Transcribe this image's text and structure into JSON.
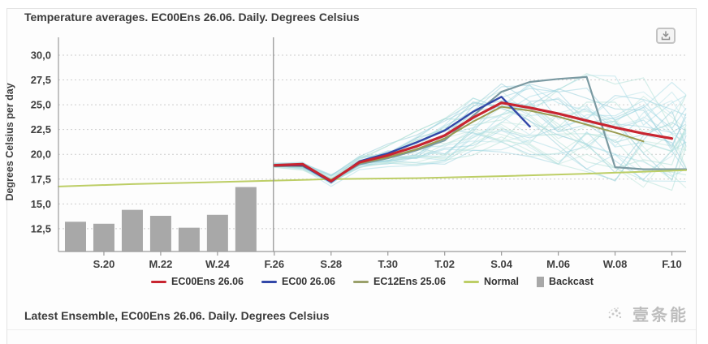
{
  "header": {
    "title": "Temperature averages. EC00Ens 26.06. Daily. Degrees Celsius"
  },
  "footer": {
    "next_section_title": "Latest Ensemble, EC00Ens 26.06. Daily. Degrees Celsius"
  },
  "watermark": {
    "text": "壹条能"
  },
  "chart_data": {
    "type": "line",
    "title": "Temperature averages. EC00Ens 26.06. Daily. Degrees Celsius",
    "xlabel": "",
    "ylabel": "Degrees Celsius per day",
    "ylim": [
      10.2,
      31.8
    ],
    "xlim_days": [
      -0.6,
      21.5
    ],
    "grid": true,
    "legend_position": "bottom",
    "decimal_separator": ",",
    "y_ticks": [
      {
        "value": 30.0,
        "label": "30,0"
      },
      {
        "value": 27.5,
        "label": "27,5"
      },
      {
        "value": 25.0,
        "label": "25,0"
      },
      {
        "value": 22.5,
        "label": "22,5"
      },
      {
        "value": 20.0,
        "label": "20,0"
      },
      {
        "value": 17.5,
        "label": "17,5"
      },
      {
        "value": 15.0,
        "label": "15,0"
      },
      {
        "value": 12.5,
        "label": "12,5"
      }
    ],
    "x_ticks": [
      {
        "day": 1,
        "label": "S.20"
      },
      {
        "day": 3,
        "label": "M.22"
      },
      {
        "day": 5,
        "label": "W.24"
      },
      {
        "day": 7,
        "label": "F.26"
      },
      {
        "day": 9,
        "label": "S.28"
      },
      {
        "day": 11,
        "label": "T.30"
      },
      {
        "day": 13,
        "label": "T.02"
      },
      {
        "day": 15,
        "label": "S.04"
      },
      {
        "day": 17,
        "label": "M.06"
      },
      {
        "day": 19,
        "label": "W.08"
      },
      {
        "day": 21,
        "label": "F.10"
      }
    ],
    "now_line_day": 6.97,
    "backcast": {
      "name": "Backcast",
      "color": "#a8a8a8",
      "days": [
        0,
        1,
        2,
        3,
        4,
        5,
        6
      ],
      "values": [
        13.2,
        13.0,
        14.4,
        13.8,
        12.6,
        13.9,
        16.7
      ]
    },
    "series": [
      {
        "name": "EC00Ens 26.06",
        "color": "#c82530",
        "width": 3.2,
        "in_legend": true,
        "points": [
          [
            7,
            18.9
          ],
          [
            8,
            19.0
          ],
          [
            9,
            17.3
          ],
          [
            10,
            19.2
          ],
          [
            11,
            19.9
          ],
          [
            12,
            20.8
          ],
          [
            13,
            21.9
          ],
          [
            14,
            23.7
          ],
          [
            15,
            25.2
          ],
          [
            16,
            24.7
          ],
          [
            17,
            24.1
          ],
          [
            18,
            23.4
          ],
          [
            19,
            22.7
          ],
          [
            20,
            22.1
          ],
          [
            21,
            21.6
          ]
        ]
      },
      {
        "name": "EC00 26.06",
        "color": "#3348a8",
        "width": 2.4,
        "in_legend": true,
        "points": [
          [
            7,
            18.85
          ],
          [
            8,
            18.9
          ],
          [
            9,
            17.2
          ],
          [
            10,
            19.3
          ],
          [
            11,
            20.1
          ],
          [
            12,
            21.2
          ],
          [
            13,
            22.4
          ],
          [
            14,
            24.3
          ],
          [
            15,
            25.8
          ],
          [
            16,
            22.8
          ]
        ]
      },
      {
        "name": "EC12Ens 25.06",
        "color": "#9a9c52",
        "width": 2,
        "in_legend": true,
        "points": [
          [
            7,
            18.8
          ],
          [
            8,
            18.85
          ],
          [
            9,
            17.4
          ],
          [
            10,
            19.1
          ],
          [
            11,
            19.7
          ],
          [
            12,
            20.5
          ],
          [
            13,
            21.6
          ],
          [
            14,
            23.3
          ],
          [
            15,
            24.8
          ],
          [
            16,
            24.4
          ],
          [
            17,
            23.8
          ],
          [
            18,
            23.0
          ],
          [
            19,
            22.2
          ],
          [
            20,
            21.3
          ]
        ]
      },
      {
        "name": "Normal",
        "color": "#bdce66",
        "width": 2,
        "in_legend": true,
        "points": [
          [
            -0.6,
            16.75
          ],
          [
            2,
            17.0
          ],
          [
            5,
            17.2
          ],
          [
            7,
            17.35
          ],
          [
            9,
            17.5
          ],
          [
            12,
            17.6
          ],
          [
            15,
            17.8
          ],
          [
            18,
            18.05
          ],
          [
            21.5,
            18.4
          ]
        ]
      },
      {
        "name": "Ensemble member highlighted",
        "color": "#7b9aa2",
        "width": 2.2,
        "in_legend": false,
        "points": [
          [
            7,
            18.9
          ],
          [
            8,
            18.8
          ],
          [
            9,
            17.4
          ],
          [
            10,
            19.0
          ],
          [
            11,
            19.6
          ],
          [
            12,
            20.4
          ],
          [
            13,
            21.4
          ],
          [
            14,
            23.9
          ],
          [
            15,
            26.3
          ],
          [
            16,
            27.3
          ],
          [
            17,
            27.6
          ],
          [
            18,
            27.8
          ],
          [
            19,
            18.7
          ],
          [
            20,
            18.5
          ],
          [
            21,
            18.5
          ],
          [
            21.5,
            18.5
          ]
        ]
      }
    ],
    "ensemble": {
      "description": "EC ensemble member spaghetti (approximate band)",
      "count": 34,
      "seed": 13,
      "opacity": 0.5,
      "stroke_width": 1.2,
      "colors": [
        "#a6dbe6",
        "#aee0d6",
        "#97d2e0",
        "#bde6dc",
        "#8fccd8",
        "#b9e4ea"
      ],
      "days": [
        7,
        8,
        9,
        10,
        11,
        12,
        13,
        14,
        15,
        16,
        17,
        18,
        19,
        20,
        21,
        21.5
      ],
      "center": [
        18.9,
        18.8,
        17.4,
        19.2,
        19.9,
        20.6,
        21.3,
        22.8,
        23.8,
        23.8,
        23.5,
        23.2,
        22.6,
        22.2,
        22.0,
        21.9
      ],
      "half": [
        0.25,
        0.35,
        0.55,
        0.65,
        1.0,
        1.5,
        2.0,
        2.5,
        3.1,
        3.5,
        3.9,
        4.3,
        4.6,
        4.8,
        4.9,
        4.9
      ]
    },
    "legend": [
      {
        "label": "EC00Ens 26.06",
        "marker": "line",
        "color": "#c82530"
      },
      {
        "label": "EC00 26.06",
        "marker": "line",
        "color": "#3348a8"
      },
      {
        "label": "EC12Ens 25.06",
        "marker": "line",
        "color": "#9aa06a"
      },
      {
        "label": "Normal",
        "marker": "line",
        "color": "#bdce66"
      },
      {
        "label": "Backcast",
        "marker": "bar",
        "color": "#a8a8a8"
      }
    ]
  }
}
